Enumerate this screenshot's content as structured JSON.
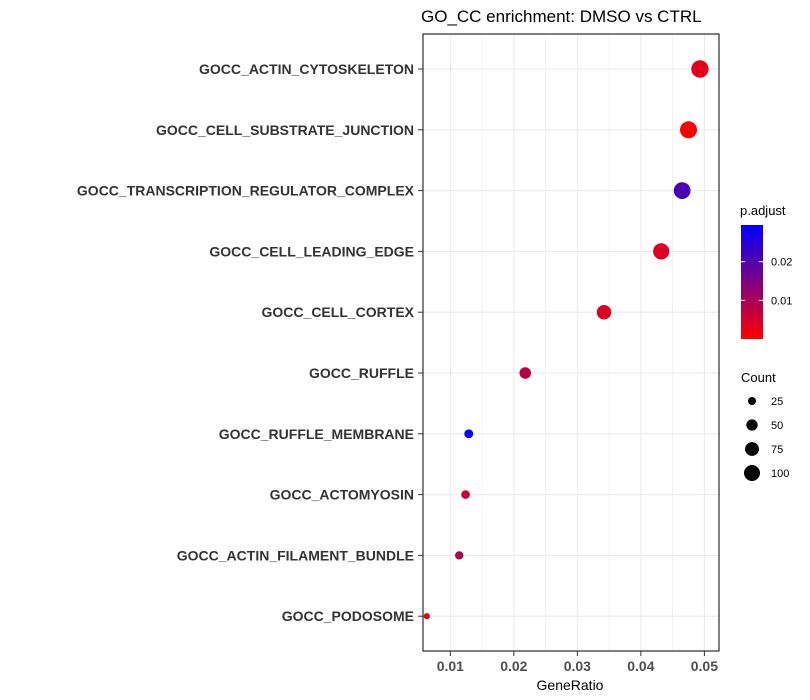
{
  "chart_data": {
    "type": "scatter",
    "title": "GO_CC enrichment: DMSO vs CTRL",
    "xlabel": "GeneRatio",
    "ylabel": "",
    "xlim": [
      0.0057,
      0.0523
    ],
    "xticks": [
      0.01,
      0.02,
      0.03,
      0.04,
      0.05
    ],
    "xtick_labels": [
      "0.01",
      "0.02",
      "0.03",
      "0.04",
      "0.05"
    ],
    "grid": true,
    "categories": [
      "GOCC_ACTIN_CYTOSKELETON",
      "GOCC_CELL_SUBSTRATE_JUNCTION",
      "GOCC_TRANSCRIPTION_REGULATOR_COMPLEX",
      "GOCC_CELL_LEADING_EDGE",
      "GOCC_CELL_CORTEX",
      "GOCC_RUFFLE",
      "GOCC_RUFFLE_MEMBRANE",
      "GOCC_ACTOMYOSIN",
      "GOCC_ACTIN_FILAMENT_BUNDLE",
      "GOCC_PODOSOME"
    ],
    "points": [
      {
        "term": "GOCC_ACTIN_CYTOSKELETON",
        "gene_ratio": 0.0493,
        "count": 118,
        "p_adjust": 0.003
      },
      {
        "term": "GOCC_CELL_SUBSTRATE_JUNCTION",
        "gene_ratio": 0.0475,
        "count": 113,
        "p_adjust": 0.0003
      },
      {
        "term": "GOCC_TRANSCRIPTION_REGULATOR_COMPLEX",
        "gene_ratio": 0.0465,
        "count": 110,
        "p_adjust": 0.021
      },
      {
        "term": "GOCC_CELL_LEADING_EDGE",
        "gene_ratio": 0.0432,
        "count": 103,
        "p_adjust": 0.004
      },
      {
        "term": "GOCC_CELL_CORTEX",
        "gene_ratio": 0.0342,
        "count": 82,
        "p_adjust": 0.004
      },
      {
        "term": "GOCC_RUFFLE",
        "gene_ratio": 0.0218,
        "count": 52,
        "p_adjust": 0.008
      },
      {
        "term": "GOCC_RUFFLE_MEMBRANE",
        "gene_ratio": 0.0129,
        "count": 31,
        "p_adjust": 0.0285
      },
      {
        "term": "GOCC_ACTOMYOSIN",
        "gene_ratio": 0.0124,
        "count": 29,
        "p_adjust": 0.006
      },
      {
        "term": "GOCC_ACTIN_FILAMENT_BUNDLE",
        "gene_ratio": 0.0114,
        "count": 27,
        "p_adjust": 0.009
      },
      {
        "term": "GOCC_PODOSOME",
        "gene_ratio": 0.0063,
        "count": 15,
        "p_adjust": 0.003
      }
    ],
    "color_legend": {
      "title": "p.adjust",
      "range": [
        0.0,
        0.0295
      ],
      "ticks": [
        0.01,
        0.02
      ],
      "tick_labels": [
        "0.01",
        "0.02"
      ],
      "low_color": "#ff0000",
      "high_color": "#0000ff"
    },
    "size_legend": {
      "title": "Count",
      "values": [
        25,
        50,
        75,
        100
      ],
      "labels": [
        "25",
        "50",
        "75",
        "100"
      ]
    },
    "legend_position": "right",
    "colors": {
      "panel_border": "#000000",
      "grid": "#ebebeb",
      "low": "#ff0000",
      "high": "#0000ff"
    }
  }
}
